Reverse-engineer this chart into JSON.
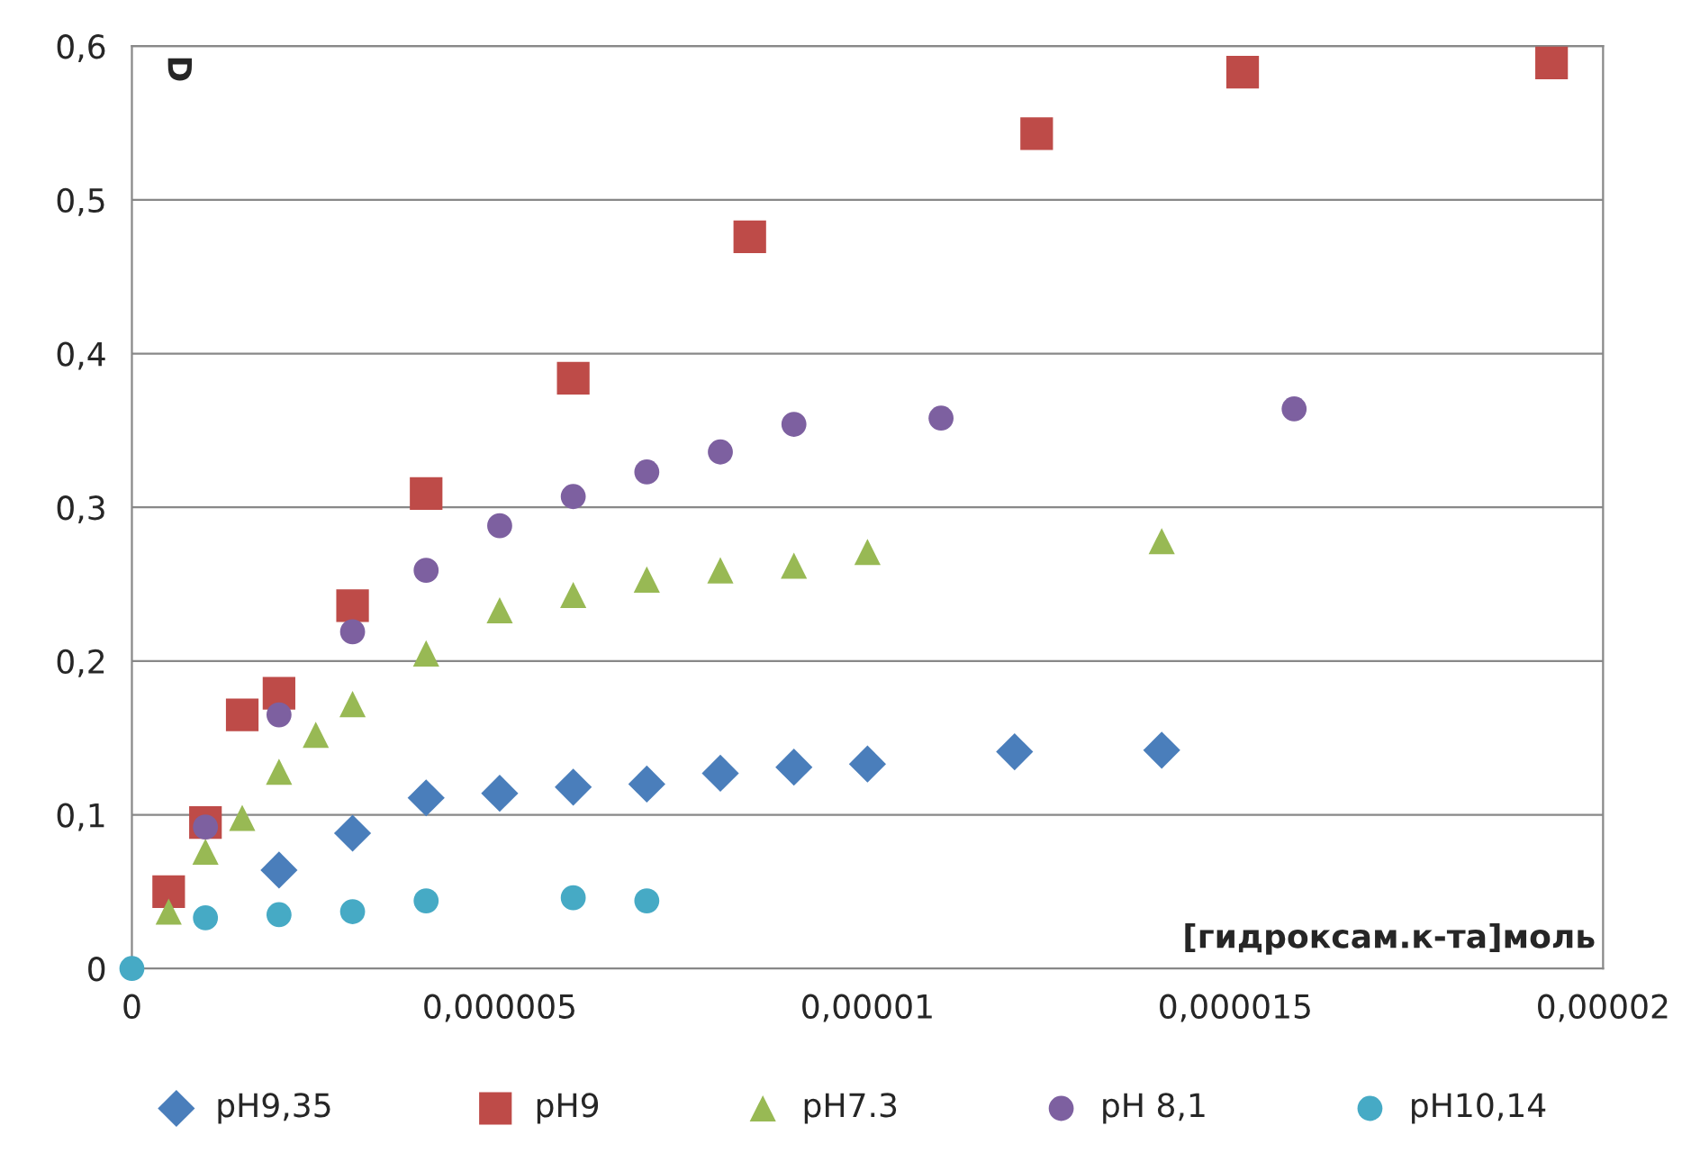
{
  "chart_data": {
    "type": "scatter",
    "xlabel": "[гидроксам.к-та]моль",
    "ylabel": "D",
    "xlim": [
      0,
      2e-05
    ],
    "ylim": [
      0,
      0.6
    ],
    "xticks": [
      {
        "value": 0,
        "label": "0"
      },
      {
        "value": 5e-06,
        "label": "0,000005"
      },
      {
        "value": 1e-05,
        "label": "0,00001"
      },
      {
        "value": 1.5e-05,
        "label": "0,000015"
      },
      {
        "value": 2e-05,
        "label": "0,00002"
      }
    ],
    "yticks": [
      {
        "value": 0,
        "label": "0"
      },
      {
        "value": 0.1,
        "label": "0,1"
      },
      {
        "value": 0.2,
        "label": "0,2"
      },
      {
        "value": 0.3,
        "label": "0,3"
      },
      {
        "value": 0.4,
        "label": "0,4"
      },
      {
        "value": 0.5,
        "label": "0,5"
      },
      {
        "value": 0.6,
        "label": "0,6"
      }
    ],
    "grid": "y",
    "legend": "bottom",
    "series": [
      {
        "name": "pH9,35",
        "color": "#4a7ebb",
        "marker": "diamond",
        "x": [
          2e-06,
          3e-06,
          4e-06,
          5e-06,
          6e-06,
          7e-06,
          8e-06,
          9e-06,
          1e-05,
          1.2e-05,
          1.4e-05
        ],
        "values": [
          0.064,
          0.088,
          0.111,
          0.114,
          0.118,
          0.12,
          0.127,
          0.131,
          0.133,
          0.141,
          0.142
        ]
      },
      {
        "name": "pH9",
        "color": "#be4b48",
        "marker": "square",
        "x": [
          5e-07,
          1e-06,
          1.5e-06,
          2e-06,
          3e-06,
          4e-06,
          6e-06,
          8.4e-06,
          1.23e-05,
          1.51e-05,
          1.93e-05
        ],
        "values": [
          0.05,
          0.095,
          0.165,
          0.179,
          0.236,
          0.309,
          0.384,
          0.476,
          0.543,
          0.583,
          0.589
        ]
      },
      {
        "name": "pH7.3",
        "color": "#98b954",
        "marker": "triangle",
        "x": [
          5e-07,
          1e-06,
          1.5e-06,
          2e-06,
          2.5e-06,
          3e-06,
          4e-06,
          5e-06,
          6e-06,
          7e-06,
          8e-06,
          9e-06,
          1e-05,
          1.4e-05
        ],
        "values": [
          0.037,
          0.076,
          0.098,
          0.128,
          0.152,
          0.172,
          0.205,
          0.233,
          0.243,
          0.253,
          0.259,
          0.262,
          0.271,
          0.278
        ]
      },
      {
        "name": "pH 8,1",
        "color": "#7d60a0",
        "marker": "circle",
        "x": [
          1e-06,
          2e-06,
          3e-06,
          4e-06,
          5e-06,
          6e-06,
          7e-06,
          8e-06,
          9e-06,
          1.1e-05,
          1.58e-05
        ],
        "values": [
          0.092,
          0.165,
          0.219,
          0.259,
          0.288,
          0.307,
          0.323,
          0.336,
          0.354,
          0.358,
          0.364
        ]
      },
      {
        "name": "pH10,14",
        "color": "#46aac5",
        "marker": "circle",
        "x": [
          0,
          1e-06,
          2e-06,
          3e-06,
          4e-06,
          6e-06,
          7e-06
        ],
        "values": [
          0,
          0.033,
          0.035,
          0.037,
          0.044,
          0.046,
          0.044
        ]
      }
    ]
  }
}
